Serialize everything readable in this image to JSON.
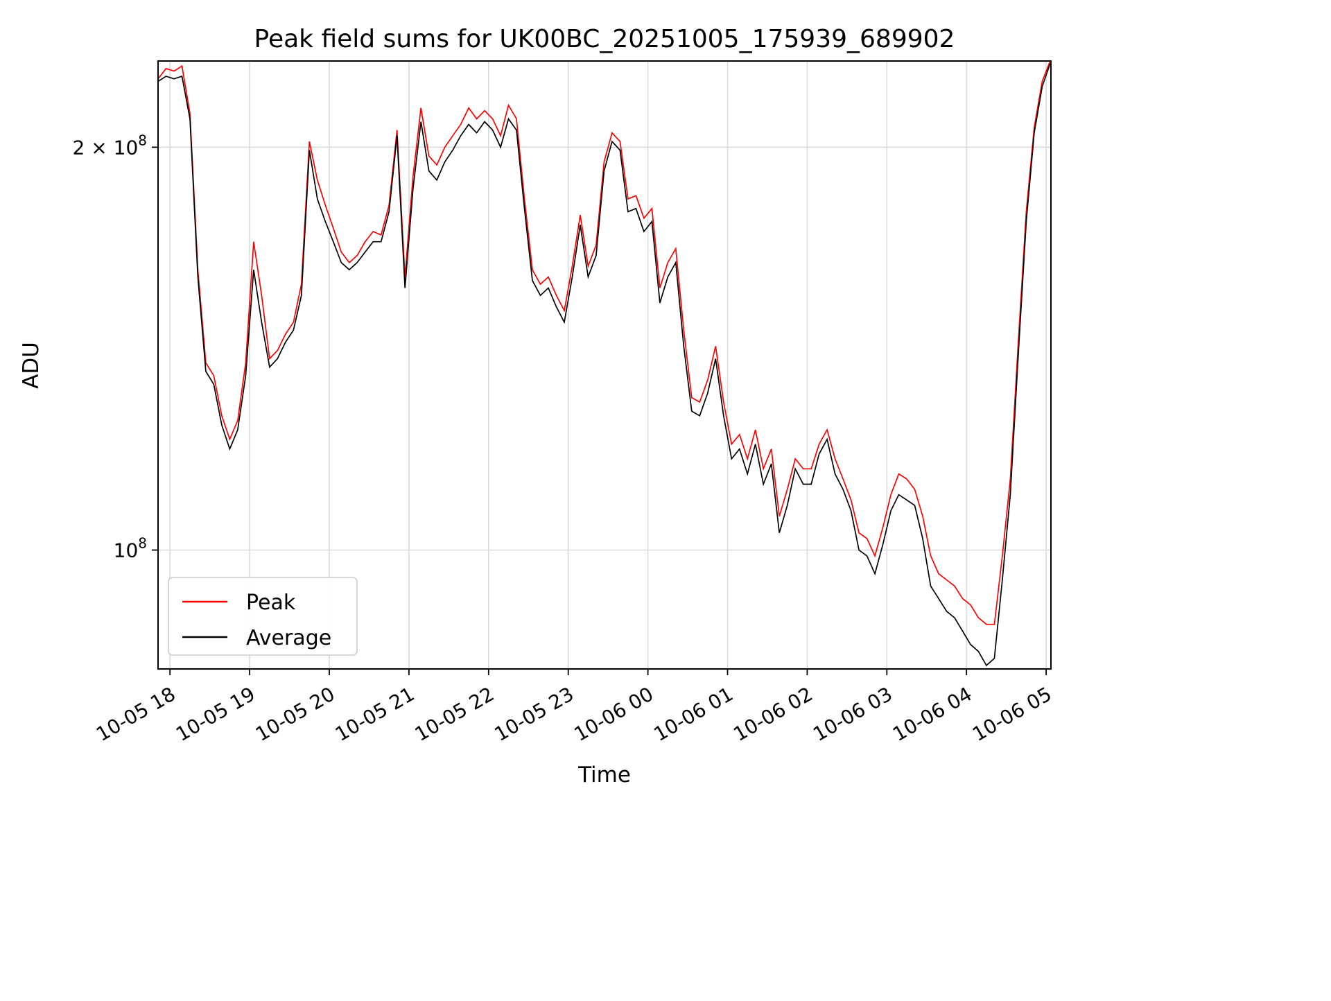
{
  "chart_data": {
    "type": "line",
    "title": "Peak field sums for UK00BC_20251005_175939_689902",
    "xlabel": "Time",
    "ylabel": "ADU",
    "yscale": "log",
    "grid": true,
    "legend_position": "lower-left",
    "x_unit": "hours since 10-05 18:00",
    "y_unit": "ADU, values given in units of 1e8",
    "xlim_hours": [
      -0.15,
      11.06
    ],
    "ylim_1e8": [
      0.815,
      2.32
    ],
    "x_tick_hours": [
      0,
      1,
      2,
      3,
      4,
      5,
      6,
      7,
      8,
      9,
      10,
      11
    ],
    "x_tick_labels": [
      "10-05 18",
      "10-05 19",
      "10-05 20",
      "10-05 21",
      "10-05 22",
      "10-05 23",
      "10-06 00",
      "10-06 01",
      "10-06 02",
      "10-06 03",
      "10-06 04",
      "10-06 05"
    ],
    "y_ticks": [
      {
        "value_1e8": 2.0,
        "base": "2 × 10",
        "exp": "8"
      },
      {
        "value_1e8": 1.0,
        "base": "10",
        "exp": "8"
      }
    ],
    "x_hours": [
      -0.15,
      -0.05,
      0.05,
      0.15,
      0.25,
      0.35,
      0.45,
      0.55,
      0.65,
      0.75,
      0.85,
      0.95,
      1.05,
      1.15,
      1.25,
      1.35,
      1.45,
      1.55,
      1.65,
      1.75,
      1.85,
      1.95,
      2.05,
      2.15,
      2.25,
      2.35,
      2.45,
      2.55,
      2.65,
      2.75,
      2.85,
      2.95,
      3.05,
      3.15,
      3.25,
      3.35,
      3.45,
      3.55,
      3.65,
      3.75,
      3.85,
      3.95,
      4.05,
      4.15,
      4.25,
      4.35,
      4.45,
      4.55,
      4.65,
      4.75,
      4.85,
      4.95,
      5.05,
      5.15,
      5.25,
      5.35,
      5.45,
      5.55,
      5.65,
      5.75,
      5.85,
      5.95,
      6.05,
      6.15,
      6.25,
      6.35,
      6.45,
      6.55,
      6.65,
      6.75,
      6.85,
      6.95,
      7.05,
      7.15,
      7.25,
      7.35,
      7.45,
      7.55,
      7.65,
      7.75,
      7.85,
      7.95,
      8.05,
      8.15,
      8.25,
      8.35,
      8.45,
      8.55,
      8.65,
      8.75,
      8.85,
      8.95,
      9.05,
      9.15,
      9.25,
      9.35,
      9.45,
      9.55,
      9.65,
      9.75,
      9.85,
      9.95,
      10.05,
      10.15,
      10.25,
      10.35,
      10.45,
      10.55,
      10.65,
      10.75,
      10.85,
      10.95,
      11.05
    ],
    "series": [
      {
        "name": "Peak",
        "color": "#ff0000",
        "values_1e8": [
          2.25,
          2.29,
          2.28,
          2.3,
          2.12,
          1.62,
          1.38,
          1.35,
          1.26,
          1.21,
          1.25,
          1.38,
          1.7,
          1.55,
          1.39,
          1.41,
          1.45,
          1.48,
          1.58,
          2.02,
          1.89,
          1.81,
          1.74,
          1.67,
          1.64,
          1.66,
          1.7,
          1.73,
          1.72,
          1.81,
          2.06,
          1.6,
          1.9,
          2.14,
          1.97,
          1.94,
          2.0,
          2.04,
          2.08,
          2.14,
          2.1,
          2.13,
          2.1,
          2.04,
          2.15,
          2.1,
          1.83,
          1.62,
          1.58,
          1.6,
          1.55,
          1.51,
          1.63,
          1.78,
          1.63,
          1.69,
          1.95,
          2.05,
          2.02,
          1.83,
          1.84,
          1.77,
          1.8,
          1.57,
          1.64,
          1.68,
          1.46,
          1.3,
          1.29,
          1.34,
          1.42,
          1.29,
          1.2,
          1.22,
          1.17,
          1.23,
          1.15,
          1.19,
          1.06,
          1.11,
          1.17,
          1.15,
          1.15,
          1.2,
          1.23,
          1.17,
          1.13,
          1.09,
          1.03,
          1.02,
          0.99,
          1.04,
          1.1,
          1.14,
          1.13,
          1.11,
          1.06,
          0.99,
          0.96,
          0.95,
          0.94,
          0.92,
          0.91,
          0.89,
          0.88,
          0.88,
          0.99,
          1.13,
          1.43,
          1.79,
          2.07,
          2.24,
          2.32
        ]
      },
      {
        "name": "Average",
        "color": "#000000",
        "values_1e8": [
          2.24,
          2.26,
          2.25,
          2.26,
          2.1,
          1.6,
          1.36,
          1.33,
          1.24,
          1.19,
          1.23,
          1.35,
          1.62,
          1.48,
          1.37,
          1.39,
          1.43,
          1.46,
          1.55,
          1.99,
          1.83,
          1.76,
          1.7,
          1.64,
          1.62,
          1.64,
          1.67,
          1.7,
          1.7,
          1.79,
          2.04,
          1.57,
          1.86,
          2.09,
          1.92,
          1.89,
          1.95,
          1.99,
          2.04,
          2.08,
          2.05,
          2.09,
          2.06,
          2.0,
          2.1,
          2.06,
          1.8,
          1.59,
          1.55,
          1.57,
          1.52,
          1.48,
          1.6,
          1.75,
          1.6,
          1.66,
          1.92,
          2.02,
          1.99,
          1.79,
          1.8,
          1.73,
          1.76,
          1.53,
          1.6,
          1.64,
          1.42,
          1.27,
          1.26,
          1.31,
          1.39,
          1.26,
          1.17,
          1.19,
          1.14,
          1.2,
          1.12,
          1.16,
          1.03,
          1.08,
          1.15,
          1.12,
          1.12,
          1.18,
          1.21,
          1.14,
          1.11,
          1.07,
          1.0,
          0.99,
          0.96,
          1.01,
          1.07,
          1.1,
          1.09,
          1.08,
          1.02,
          0.94,
          0.92,
          0.9,
          0.89,
          0.87,
          0.85,
          0.84,
          0.82,
          0.83,
          0.95,
          1.1,
          1.4,
          1.76,
          2.05,
          2.22,
          2.31
        ]
      }
    ]
  }
}
